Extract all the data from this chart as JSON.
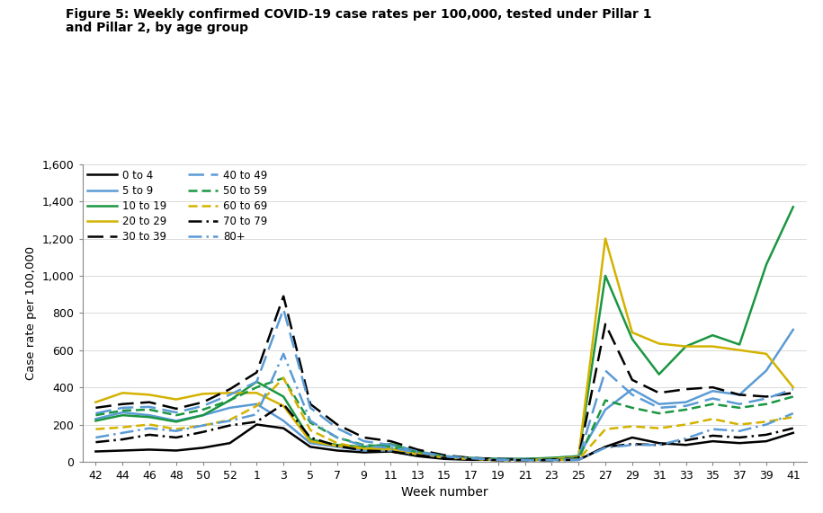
{
  "title_line1": "Figure 5: Weekly confirmed COVID-19 case rates per 100,000, tested under Pillar 1",
  "title_line2": "and Pillar 2, by age group",
  "xlabel": "Week number",
  "ylabel": "Case rate per 100,000",
  "ylim": [
    0,
    1600
  ],
  "yticks": [
    0,
    200,
    400,
    600,
    800,
    1000,
    1200,
    1400,
    1600
  ],
  "ytick_labels": [
    "0",
    "200",
    "400",
    "600",
    "800",
    "1,000",
    "1,200",
    "1,400",
    "1,600"
  ],
  "xtick_labels": [
    "42",
    "44",
    "46",
    "48",
    "50",
    "52",
    "1",
    "3",
    "5",
    "7",
    "9",
    "11",
    "13",
    "15",
    "17",
    "19",
    "21",
    "23",
    "25",
    "27",
    "29",
    "31",
    "33",
    "35",
    "37",
    "39",
    "41"
  ],
  "series": [
    {
      "label": "0 to 4",
      "color": "#000000",
      "linestyle": "solid",
      "linewidth": 1.8,
      "data": [
        55,
        60,
        65,
        60,
        75,
        100,
        200,
        180,
        80,
        60,
        50,
        55,
        30,
        15,
        10,
        10,
        10,
        10,
        10,
        80,
        130,
        100,
        90,
        110,
        100,
        110,
        155
      ]
    },
    {
      "label": "5 to 9",
      "color": "#5b9bd5",
      "linestyle": "solid",
      "linewidth": 1.8,
      "data": [
        230,
        265,
        250,
        220,
        250,
        290,
        310,
        220,
        100,
        80,
        60,
        60,
        40,
        25,
        20,
        15,
        15,
        20,
        30,
        280,
        390,
        310,
        320,
        380,
        360,
        490,
        710
      ]
    },
    {
      "label": "10 to 19",
      "color": "#1a9641",
      "linestyle": "solid",
      "linewidth": 1.8,
      "data": [
        220,
        250,
        240,
        215,
        250,
        330,
        430,
        350,
        120,
        90,
        80,
        95,
        55,
        30,
        20,
        15,
        15,
        20,
        30,
        1000,
        660,
        470,
        620,
        680,
        630,
        1060,
        1370
      ]
    },
    {
      "label": "20 to 29",
      "color": "#d4b200",
      "linestyle": "solid",
      "linewidth": 1.8,
      "data": [
        320,
        370,
        360,
        335,
        365,
        370,
        370,
        300,
        110,
        85,
        70,
        70,
        45,
        25,
        18,
        12,
        12,
        15,
        25,
        1200,
        695,
        635,
        620,
        620,
        600,
        580,
        400
      ]
    },
    {
      "label": "30 to 39",
      "color": "#000000",
      "linestyle": "dashed",
      "dashes": [
        7,
        3
      ],
      "linewidth": 1.8,
      "data": [
        290,
        310,
        320,
        285,
        320,
        390,
        480,
        890,
        310,
        200,
        130,
        110,
        65,
        35,
        20,
        15,
        12,
        12,
        20,
        740,
        440,
        370,
        390,
        400,
        360,
        350,
        370
      ]
    },
    {
      "label": "40 to 49",
      "color": "#5b9bd5",
      "linestyle": "dashed",
      "dashes": [
        7,
        3
      ],
      "linewidth": 1.8,
      "data": [
        260,
        290,
        295,
        265,
        300,
        360,
        430,
        820,
        290,
        180,
        110,
        90,
        55,
        30,
        18,
        12,
        10,
        10,
        18,
        490,
        360,
        290,
        300,
        340,
        310,
        340,
        390
      ]
    },
    {
      "label": "50 to 59",
      "color": "#1a9641",
      "linestyle": "dashed",
      "dashes": [
        4,
        2
      ],
      "linewidth": 1.8,
      "data": [
        250,
        275,
        280,
        250,
        280,
        330,
        400,
        450,
        210,
        130,
        90,
        80,
        50,
        28,
        16,
        10,
        10,
        10,
        15,
        330,
        290,
        260,
        280,
        310,
        290,
        310,
        350
      ]
    },
    {
      "label": "60 to 69",
      "color": "#d4b200",
      "linestyle": "dashed",
      "dashes": [
        4,
        2
      ],
      "linewidth": 1.8,
      "data": [
        175,
        185,
        200,
        175,
        195,
        225,
        300,
        450,
        170,
        100,
        70,
        65,
        40,
        22,
        14,
        8,
        8,
        8,
        12,
        175,
        190,
        180,
        200,
        230,
        200,
        215,
        240
      ]
    },
    {
      "label": "70 to 79",
      "color": "#000000",
      "linestyle": "dashdot",
      "dashes": [
        6,
        2,
        1,
        2
      ],
      "linewidth": 1.8,
      "data": [
        105,
        120,
        145,
        130,
        160,
        195,
        215,
        310,
        130,
        85,
        60,
        55,
        35,
        20,
        13,
        8,
        8,
        8,
        10,
        80,
        95,
        90,
        115,
        140,
        130,
        145,
        180
      ]
    },
    {
      "label": "80+",
      "color": "#5b9bd5",
      "linestyle": "dashdot",
      "dashes": [
        6,
        2,
        1,
        2
      ],
      "linewidth": 1.8,
      "data": [
        130,
        155,
        180,
        165,
        195,
        220,
        255,
        580,
        220,
        130,
        85,
        75,
        50,
        28,
        18,
        10,
        8,
        8,
        10,
        75,
        90,
        90,
        125,
        175,
        165,
        200,
        260
      ]
    }
  ],
  "background_color": "#ffffff"
}
